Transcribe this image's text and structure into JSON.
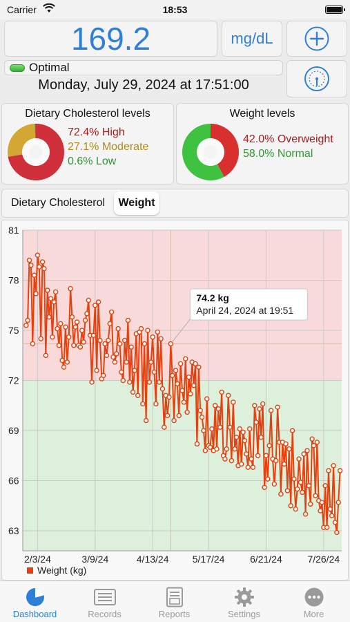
{
  "status_bar": {
    "carrier": "Carrier",
    "time": "18:53"
  },
  "reading": {
    "value": "169.2",
    "unit": "mg/dL",
    "status": "Optimal",
    "date": "Monday, July 29, 2024 at 17:51:00"
  },
  "cholesterol_card": {
    "title": "Dietary Cholesterol levels",
    "high": "72.4% High",
    "moderate": "27.1% Moderate",
    "low": "0.6% Low",
    "shares": [
      72.4,
      27.1,
      0.6
    ]
  },
  "weight_card": {
    "title": "Weight levels",
    "overweight": "42.0% Overweight",
    "normal": "58.0% Normal",
    "shares": [
      42.0,
      58.0
    ]
  },
  "tabs": [
    {
      "label": "Dietary Cholesterol",
      "selected": false
    },
    {
      "label": "Weight",
      "selected": true
    }
  ],
  "chart_data": {
    "type": "line",
    "series": [
      {
        "name": "Weight (kg)",
        "points": [
          {
            "x": "2024-01-27",
            "y": 75.3
          },
          {
            "x": "2024-01-28",
            "y": 75.6
          },
          {
            "x": "2024-01-29",
            "y": 79.2
          },
          {
            "x": "2024-01-30",
            "y": 78.9
          },
          {
            "x": "2024-01-31",
            "y": 74.2
          },
          {
            "x": "2024-02-01",
            "y": 78.3
          },
          {
            "x": "2024-02-02",
            "y": 77.2
          },
          {
            "x": "2024-02-03",
            "y": 79.5
          },
          {
            "x": "2024-02-04",
            "y": 78.8
          },
          {
            "x": "2024-02-05",
            "y": 74.5
          },
          {
            "x": "2024-02-06",
            "y": 79.1
          },
          {
            "x": "2024-02-07",
            "y": 78.7
          },
          {
            "x": "2024-02-08",
            "y": 73.5
          },
          {
            "x": "2024-02-09",
            "y": 77.4
          },
          {
            "x": "2024-02-10",
            "y": 75.8
          },
          {
            "x": "2024-02-11",
            "y": 76.9
          },
          {
            "x": "2024-02-12",
            "y": 74.6
          },
          {
            "x": "2024-02-13",
            "y": 76.7
          },
          {
            "x": "2024-02-14",
            "y": 77.3
          },
          {
            "x": "2024-02-15",
            "y": 75.1
          },
          {
            "x": "2024-02-16",
            "y": 74.1
          },
          {
            "x": "2024-02-17",
            "y": 75.4
          },
          {
            "x": "2024-02-18",
            "y": 73.2
          },
          {
            "x": "2024-02-19",
            "y": 72.8
          },
          {
            "x": "2024-02-20",
            "y": 75.2
          },
          {
            "x": "2024-02-21",
            "y": 73.1
          },
          {
            "x": "2024-02-22",
            "y": 74.6
          },
          {
            "x": "2024-02-23",
            "y": 77.5
          },
          {
            "x": "2024-02-24",
            "y": 75.8
          },
          {
            "x": "2024-02-25",
            "y": 74.1
          },
          {
            "x": "2024-02-26",
            "y": 75.2
          },
          {
            "x": "2024-02-27",
            "y": 75.5
          },
          {
            "x": "2024-02-28",
            "y": 74.1
          },
          {
            "x": "2024-02-29",
            "y": 74.0
          },
          {
            "x": "2024-03-01",
            "y": 75.0
          },
          {
            "x": "2024-03-02",
            "y": 74.3
          },
          {
            "x": "2024-03-03",
            "y": 75.6
          },
          {
            "x": "2024-03-04",
            "y": 76.0
          },
          {
            "x": "2024-03-05",
            "y": 76.8
          },
          {
            "x": "2024-03-06",
            "y": 74.7
          },
          {
            "x": "2024-03-07",
            "y": 71.9
          },
          {
            "x": "2024-03-08",
            "y": 74.7
          },
          {
            "x": "2024-03-09",
            "y": 76.5
          },
          {
            "x": "2024-03-10",
            "y": 72.6
          },
          {
            "x": "2024-03-11",
            "y": 76.7
          },
          {
            "x": "2024-03-12",
            "y": 74.4
          },
          {
            "x": "2024-03-13",
            "y": 72.1
          },
          {
            "x": "2024-03-14",
            "y": 72.3
          },
          {
            "x": "2024-03-15",
            "y": 74.2
          },
          {
            "x": "2024-03-16",
            "y": 73.5
          },
          {
            "x": "2024-03-17",
            "y": 74.4
          },
          {
            "x": "2024-03-18",
            "y": 75.4
          },
          {
            "x": "2024-03-19",
            "y": 76.1
          },
          {
            "x": "2024-03-20",
            "y": 73.4
          },
          {
            "x": "2024-03-21",
            "y": 73.1
          },
          {
            "x": "2024-03-22",
            "y": 73.6
          },
          {
            "x": "2024-03-23",
            "y": 75.1
          },
          {
            "x": "2024-03-24",
            "y": 74.2
          },
          {
            "x": "2024-03-25",
            "y": 72.5
          },
          {
            "x": "2024-03-26",
            "y": 72.0
          },
          {
            "x": "2024-03-27",
            "y": 74.4
          },
          {
            "x": "2024-03-28",
            "y": 73.1
          },
          {
            "x": "2024-03-29",
            "y": 75.6
          },
          {
            "x": "2024-03-30",
            "y": 71.9
          },
          {
            "x": "2024-03-31",
            "y": 74.0
          },
          {
            "x": "2024-04-01",
            "y": 71.3
          },
          {
            "x": "2024-04-02",
            "y": 72.6
          },
          {
            "x": "2024-04-03",
            "y": 74.8
          },
          {
            "x": "2024-04-04",
            "y": 71.1
          },
          {
            "x": "2024-04-05",
            "y": 74.9
          },
          {
            "x": "2024-04-06",
            "y": 75.1
          },
          {
            "x": "2024-04-07",
            "y": 70.6
          },
          {
            "x": "2024-04-08",
            "y": 74.2
          },
          {
            "x": "2024-04-09",
            "y": 69.6
          },
          {
            "x": "2024-04-10",
            "y": 75.0
          },
          {
            "x": "2024-04-11",
            "y": 71.9
          },
          {
            "x": "2024-04-12",
            "y": 73.1
          },
          {
            "x": "2024-04-13",
            "y": 74.6
          },
          {
            "x": "2024-04-14",
            "y": 72.5
          },
          {
            "x": "2024-04-15",
            "y": 70.6
          },
          {
            "x": "2024-04-16",
            "y": 74.9
          },
          {
            "x": "2024-04-17",
            "y": 71.9
          },
          {
            "x": "2024-04-18",
            "y": 74.5
          },
          {
            "x": "2024-04-19",
            "y": 71.5
          },
          {
            "x": "2024-04-20",
            "y": 69.2
          },
          {
            "x": "2024-04-21",
            "y": 71.1
          },
          {
            "x": "2024-04-22",
            "y": 69.9
          },
          {
            "x": "2024-04-23",
            "y": 71.0
          },
          {
            "x": "2024-04-24",
            "y": 74.2
          },
          {
            "x": "2024-04-25",
            "y": 72.3
          },
          {
            "x": "2024-04-26",
            "y": 69.6
          },
          {
            "x": "2024-04-27",
            "y": 72.6
          },
          {
            "x": "2024-04-28",
            "y": 71.8
          },
          {
            "x": "2024-04-29",
            "y": 69.9
          },
          {
            "x": "2024-04-30",
            "y": 73.0
          },
          {
            "x": "2024-05-01",
            "y": 71.4
          },
          {
            "x": "2024-05-02",
            "y": 70.7
          },
          {
            "x": "2024-05-03",
            "y": 73.3
          },
          {
            "x": "2024-05-04",
            "y": 70.1
          },
          {
            "x": "2024-05-05",
            "y": 72.2
          },
          {
            "x": "2024-05-06",
            "y": 71.2
          },
          {
            "x": "2024-05-07",
            "y": 73.1
          },
          {
            "x": "2024-05-08",
            "y": 71.7
          },
          {
            "x": "2024-05-09",
            "y": 73.0
          },
          {
            "x": "2024-05-10",
            "y": 68.2
          },
          {
            "x": "2024-05-11",
            "y": 72.8
          },
          {
            "x": "2024-05-12",
            "y": 70.2
          },
          {
            "x": "2024-05-13",
            "y": 69.8
          },
          {
            "x": "2024-05-14",
            "y": 69.0
          },
          {
            "x": "2024-05-15",
            "y": 67.8
          },
          {
            "x": "2024-05-16",
            "y": 70.9
          },
          {
            "x": "2024-05-17",
            "y": 68.1
          },
          {
            "x": "2024-05-18",
            "y": 68.0
          },
          {
            "x": "2024-05-19",
            "y": 69.1
          },
          {
            "x": "2024-05-20",
            "y": 67.8
          },
          {
            "x": "2024-05-21",
            "y": 70.5
          },
          {
            "x": "2024-05-22",
            "y": 67.9
          },
          {
            "x": "2024-05-23",
            "y": 70.3
          },
          {
            "x": "2024-05-24",
            "y": 69.2
          },
          {
            "x": "2024-05-25",
            "y": 71.3
          },
          {
            "x": "2024-05-26",
            "y": 67.5
          },
          {
            "x": "2024-05-27",
            "y": 67.3
          },
          {
            "x": "2024-05-28",
            "y": 67.9
          },
          {
            "x": "2024-05-29",
            "y": 71.1
          },
          {
            "x": "2024-05-30",
            "y": 69.2
          },
          {
            "x": "2024-05-31",
            "y": 67.2
          },
          {
            "x": "2024-06-01",
            "y": 70.7
          },
          {
            "x": "2024-06-02",
            "y": 67.9
          },
          {
            "x": "2024-06-03",
            "y": 68.6
          },
          {
            "x": "2024-06-04",
            "y": 66.9
          },
          {
            "x": "2024-06-05",
            "y": 69.1
          },
          {
            "x": "2024-06-06",
            "y": 67.0
          },
          {
            "x": "2024-06-07",
            "y": 68.9
          },
          {
            "x": "2024-06-08",
            "y": 68.4
          },
          {
            "x": "2024-06-09",
            "y": 67.6
          },
          {
            "x": "2024-06-10",
            "y": 66.8
          },
          {
            "x": "2024-06-11",
            "y": 69.1
          },
          {
            "x": "2024-06-12",
            "y": 67.3
          },
          {
            "x": "2024-06-13",
            "y": 66.8
          },
          {
            "x": "2024-06-14",
            "y": 70.5
          },
          {
            "x": "2024-06-15",
            "y": 69.5
          },
          {
            "x": "2024-06-16",
            "y": 67.5
          },
          {
            "x": "2024-06-17",
            "y": 70.3
          },
          {
            "x": "2024-06-18",
            "y": 68.6
          },
          {
            "x": "2024-06-19",
            "y": 70.6
          },
          {
            "x": "2024-06-20",
            "y": 65.6
          },
          {
            "x": "2024-06-21",
            "y": 67.5
          },
          {
            "x": "2024-06-22",
            "y": 66.1
          },
          {
            "x": "2024-06-23",
            "y": 68.1
          },
          {
            "x": "2024-06-24",
            "y": 70.2
          },
          {
            "x": "2024-06-25",
            "y": 67.3
          },
          {
            "x": "2024-06-26",
            "y": 65.8
          },
          {
            "x": "2024-06-27",
            "y": 67.2
          },
          {
            "x": "2024-06-28",
            "y": 70.4
          },
          {
            "x": "2024-06-29",
            "y": 68.3
          },
          {
            "x": "2024-06-30",
            "y": 65.2
          },
          {
            "x": "2024-07-01",
            "y": 68.3
          },
          {
            "x": "2024-07-02",
            "y": 67.0
          },
          {
            "x": "2024-07-03",
            "y": 68.2
          },
          {
            "x": "2024-07-04",
            "y": 65.4
          },
          {
            "x": "2024-07-05",
            "y": 67.9
          },
          {
            "x": "2024-07-06",
            "y": 64.5
          },
          {
            "x": "2024-07-07",
            "y": 69.0
          },
          {
            "x": "2024-07-08",
            "y": 66.1
          },
          {
            "x": "2024-07-09",
            "y": 64.3
          },
          {
            "x": "2024-07-10",
            "y": 65.5
          },
          {
            "x": "2024-07-11",
            "y": 67.3
          },
          {
            "x": "2024-07-12",
            "y": 65.9
          },
          {
            "x": "2024-07-13",
            "y": 65.3
          },
          {
            "x": "2024-07-14",
            "y": 67.6
          },
          {
            "x": "2024-07-15",
            "y": 64.0
          },
          {
            "x": "2024-07-16",
            "y": 67.8
          },
          {
            "x": "2024-07-17",
            "y": 65.7
          },
          {
            "x": "2024-07-18",
            "y": 64.6
          },
          {
            "x": "2024-07-19",
            "y": 68.5
          },
          {
            "x": "2024-07-20",
            "y": 68.1
          },
          {
            "x": "2024-07-21",
            "y": 65.1
          },
          {
            "x": "2024-07-22",
            "y": 68.3
          },
          {
            "x": "2024-07-23",
            "y": 64.8
          },
          {
            "x": "2024-07-24",
            "y": 64.2
          },
          {
            "x": "2024-07-25",
            "y": 64.7
          },
          {
            "x": "2024-07-26",
            "y": 63.2
          },
          {
            "x": "2024-07-27",
            "y": 65.7
          },
          {
            "x": "2024-07-28",
            "y": 63.2
          },
          {
            "x": "2024-07-29",
            "y": 66.6
          },
          {
            "x": "2024-07-30",
            "y": 64.3
          },
          {
            "x": "2024-07-31",
            "y": 63.9
          },
          {
            "x": "2024-08-01",
            "y": 66.9
          },
          {
            "x": "2024-08-02",
            "y": 63.5
          },
          {
            "x": "2024-08-03",
            "y": 62.9
          },
          {
            "x": "2024-08-04",
            "y": 64.7
          },
          {
            "x": "2024-08-05",
            "y": 66.6
          }
        ],
        "color": "#e8400c"
      }
    ],
    "y_ticks": [
      "81",
      "78",
      "75",
      "72",
      "69",
      "66",
      "63"
    ],
    "x_ticks": [
      {
        "date": "2024-02-03",
        "label": "2/3/24"
      },
      {
        "date": "2024-03-09",
        "label": "3/9/24"
      },
      {
        "date": "2024-04-13",
        "label": "4/13/24"
      },
      {
        "date": "2024-05-17",
        "label": "5/17/24"
      },
      {
        "date": "2024-06-21",
        "label": "6/21/24"
      },
      {
        "date": "2024-07-26",
        "label": "7/26/24"
      }
    ],
    "xlim": [
      "2024-01-25",
      "2024-08-06"
    ],
    "ylim": [
      61.8,
      81.0
    ],
    "zones": [
      {
        "from": 72.0,
        "to": 81.0,
        "color": "#f8dada"
      },
      {
        "from": 61.8,
        "to": 72.0,
        "color": "#dcf0dc"
      }
    ],
    "grid": true,
    "legend": "bottom-left",
    "selected_point": {
      "x": "2024-04-24",
      "y": 74.2,
      "value_label": "74.2 kg",
      "date_label": "April 24, 2024 at 19:51"
    }
  },
  "tab_bar": [
    {
      "label": "Dashboard",
      "icon": "dashboard-icon",
      "active": true
    },
    {
      "label": "Records",
      "icon": "records-icon",
      "active": false
    },
    {
      "label": "Reports",
      "icon": "reports-icon",
      "active": false
    },
    {
      "label": "Settings",
      "icon": "settings-icon",
      "active": false
    },
    {
      "label": "More",
      "icon": "more-icon",
      "active": false
    }
  ],
  "colors": {
    "accent": "#2f7fd9",
    "high": "#d0303a",
    "moderate": "#d4a632",
    "low": "#2a9a2a",
    "overweight": "#b01818",
    "normal": "#2e9a2e"
  }
}
